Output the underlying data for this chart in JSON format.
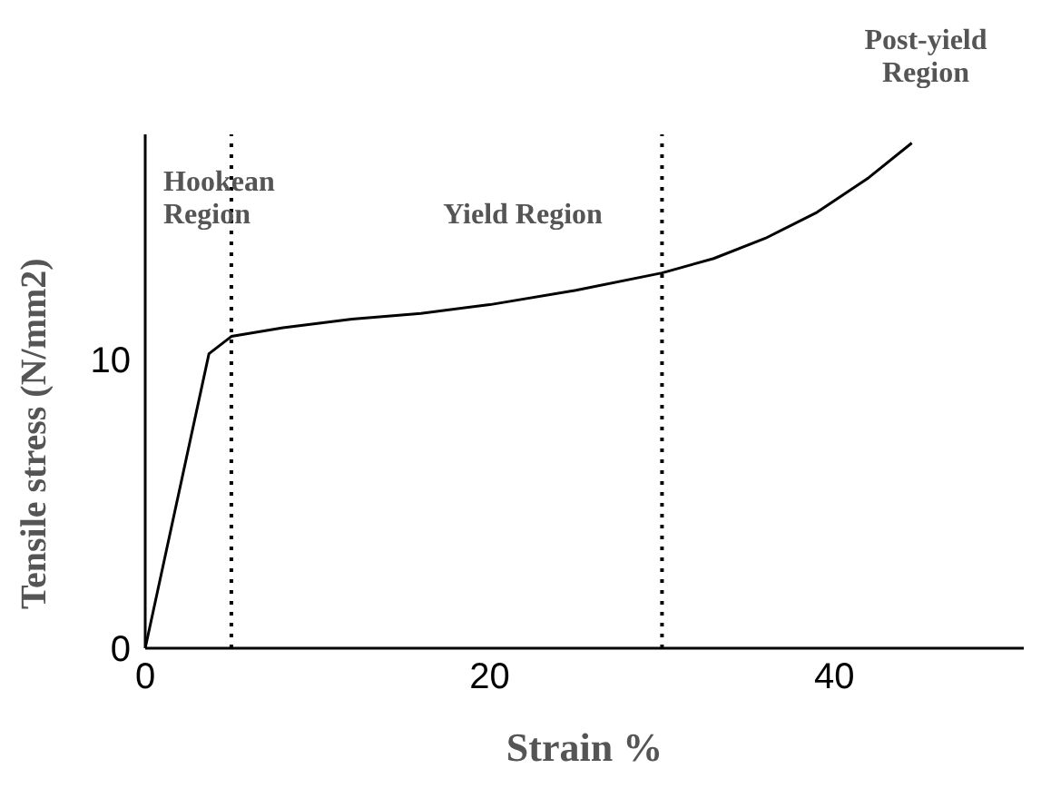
{
  "chart_data": {
    "type": "line",
    "xlabel": "Strain  %",
    "ylabel": "Tensile stress (N/mm2)",
    "x": [
      0,
      3.7,
      5,
      8,
      12,
      16,
      20,
      25,
      30,
      33,
      36,
      39,
      42,
      44.5
    ],
    "series": [
      {
        "color": "#000000",
        "values": [
          0,
          10.2,
          10.8,
          11.1,
          11.4,
          11.6,
          11.9,
          12.4,
          13.0,
          13.5,
          14.2,
          15.1,
          16.3,
          17.5
        ]
      }
    ],
    "xlim": [
      0,
      51
    ],
    "ylim": [
      0,
      17.8
    ],
    "xticks": [
      0,
      20,
      40
    ],
    "yticks": [
      0,
      10
    ],
    "ref_lines": [
      {
        "axis": "x",
        "value": 5,
        "color": "#000000",
        "line_style": "dotted"
      },
      {
        "axis": "x",
        "value": 30,
        "color": "#000000",
        "line_style": "dotted"
      }
    ],
    "annotations": [
      "Hookean Region",
      "Yield Region",
      "Post-yield Region"
    ],
    "marker": "none",
    "line_style": "solid"
  }
}
